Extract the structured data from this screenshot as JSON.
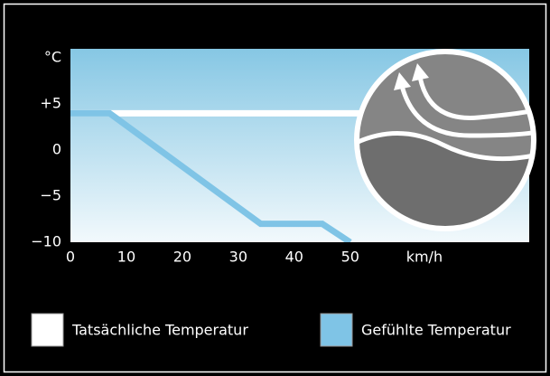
{
  "chart_data": {
    "type": "line",
    "xlim": [
      0,
      82
    ],
    "ylim": [
      -10,
      11
    ],
    "xticks": [
      0,
      10,
      20,
      30,
      40,
      50,
      {
        "value": 60,
        "label": "km/h"
      }
    ],
    "yticks": [
      {
        "value": 10,
        "label": "°C"
      },
      {
        "value": 5,
        "label": "+5"
      },
      0,
      {
        "value": -5,
        "label": "−5"
      },
      {
        "value": -10,
        "label": "−10"
      }
    ],
    "series": [
      {
        "name": "Tatsächliche Temperatur",
        "color": "#ffffff",
        "x": [
          0,
          82
        ],
        "values": [
          4,
          4
        ]
      },
      {
        "name": "Gefühlte Temperatur",
        "color": "#7fc4e6",
        "x": [
          0,
          7,
          34,
          45,
          50
        ],
        "values": [
          4,
          4,
          -8,
          -8,
          -10
        ]
      }
    ]
  }
}
